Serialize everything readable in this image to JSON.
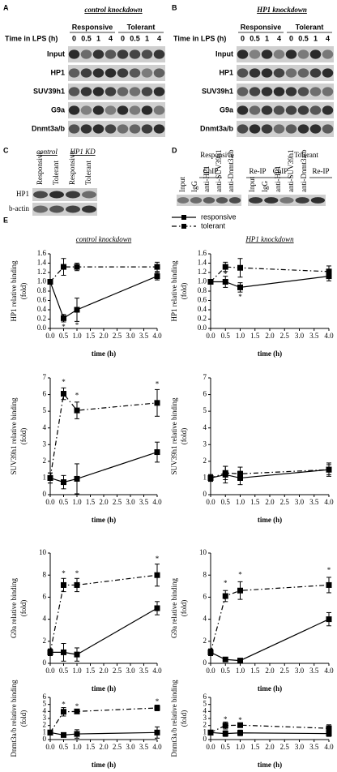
{
  "panels": {
    "A": {
      "label": "A",
      "title": "control knockdown",
      "groups": [
        "Responsive",
        "Tolerant"
      ],
      "time_label": "Time in LPS (h)",
      "times": [
        "0",
        "0.5",
        "1",
        "4",
        "0",
        "0.5",
        "1",
        "4"
      ],
      "rows": [
        "Input",
        "HP1",
        "SUV39h1",
        "G9a",
        "Dnmt3a/b"
      ]
    },
    "B": {
      "label": "B",
      "title": "HP1 knockdown",
      "groups": [
        "Responsive",
        "Tolerant"
      ],
      "time_label": "Time in LPS (h)",
      "times": [
        "0",
        "0.5",
        "1",
        "4",
        "0",
        "0.5",
        "1",
        "4"
      ],
      "rows": [
        "Input",
        "HP1",
        "SUV39h1",
        "G9a",
        "Dnmt3a/b"
      ]
    },
    "C": {
      "label": "C",
      "groups": [
        "control",
        "HP1 KD"
      ],
      "lanes": [
        "Responsive",
        "Tolerant",
        "Responsive",
        "Tolerant"
      ],
      "rows": [
        "HP1",
        "b-actin"
      ]
    },
    "D": {
      "label": "D",
      "groups": [
        "Responsive",
        "Tolerant"
      ],
      "subgroups": [
        "ChIP",
        "Re-IP",
        "ChIP",
        "Re-IP"
      ],
      "lanes": [
        "Input",
        "IgG",
        "anti-HP1",
        "anti-SUV39h1",
        "anti-Dnmt3a/b",
        "Input",
        "IgG",
        "anti-HP1",
        "anti-SUV39h1",
        "anti-Dnmt3a/b"
      ]
    },
    "E": {
      "label": "E"
    }
  },
  "chart_data": [
    {
      "type": "line",
      "title": "control knockdown",
      "ylabel": [
        "HP1 relative binding",
        "(fold)"
      ],
      "xlabel": "time (h)",
      "x": [
        0,
        0.5,
        1,
        4
      ],
      "xlim": [
        0,
        4
      ],
      "xticks": [
        {
          "value": 0,
          "label": "0.0"
        },
        0.5,
        {
          "value": 1,
          "label": "1.0"
        },
        1.5,
        {
          "value": 2,
          "label": "2.0"
        },
        2.5,
        {
          "value": 3,
          "label": "3.0"
        },
        3.5,
        {
          "value": 4,
          "label": "4.0"
        }
      ],
      "ylim": [
        0,
        1.6
      ],
      "yticks": [
        {
          "value": 0,
          "label": "0.0"
        },
        0.2,
        0.4,
        0.6,
        0.8,
        {
          "value": 1,
          "label": "1.0"
        },
        1.2,
        1.4,
        1.6
      ],
      "series": [
        {
          "name": "responsive",
          "color": "#000000",
          "style": "solid",
          "values": [
            1.0,
            0.22,
            0.4,
            1.12
          ],
          "errors": [
            0.02,
            0.08,
            0.25,
            0.08
          ]
        },
        {
          "name": "tolerant",
          "color": "#000000",
          "style": "dashdot",
          "values": [
            1.0,
            1.32,
            1.32,
            1.32
          ],
          "errors": [
            0.02,
            0.18,
            0.08,
            0.1
          ]
        }
      ],
      "annotations": [
        {
          "text": "*",
          "x": 0.5,
          "y": 0.02
        },
        {
          "text": "*",
          "x": 1,
          "y": 0.05
        }
      ]
    },
    {
      "type": "line",
      "title": "HP1 knockdown",
      "ylabel": [
        "HP1 relative binding",
        "(fold)"
      ],
      "xlabel": "time (h)",
      "x": [
        0,
        0.5,
        1,
        4
      ],
      "xlim": [
        0,
        4
      ],
      "xticks": [
        {
          "value": 0,
          "label": "0.0"
        },
        0.5,
        {
          "value": 1,
          "label": "1.0"
        },
        1.5,
        {
          "value": 2,
          "label": "2.0"
        },
        2.5,
        {
          "value": 3,
          "label": "3.0"
        },
        3.5,
        {
          "value": 4,
          "label": "4.0"
        }
      ],
      "ylim": [
        0,
        1.6
      ],
      "yticks": [
        {
          "value": 0,
          "label": "0.0"
        },
        0.2,
        0.4,
        0.6,
        0.8,
        {
          "value": 1,
          "label": "1.0"
        },
        1.2,
        1.4,
        1.6
      ],
      "series": [
        {
          "color": "#000000",
          "style": "solid",
          "values": [
            1.0,
            1.0,
            0.88,
            1.12
          ],
          "errors": [
            0.02,
            0.12,
            0.1,
            0.1
          ]
        },
        {
          "color": "#000000",
          "style": "dashdot",
          "values": [
            1.0,
            1.32,
            1.3,
            1.22
          ],
          "errors": [
            0.02,
            0.1,
            0.2,
            0.12
          ]
        }
      ],
      "annotations": [
        {
          "text": "*",
          "x": 0.5,
          "y": 1.15
        },
        {
          "text": "*",
          "x": 1,
          "y": 0.66
        }
      ]
    },
    {
      "type": "line",
      "ylabel": [
        "SUV39h1 relative binding",
        "(fold)"
      ],
      "xlabel": "time (h)",
      "x": [
        0,
        0.5,
        1,
        4
      ],
      "xlim": [
        0,
        4
      ],
      "xticks": [
        {
          "value": 0,
          "label": "0.0"
        },
        0.5,
        {
          "value": 1,
          "label": "1.0"
        },
        1.5,
        {
          "value": 2,
          "label": "2.0"
        },
        2.5,
        {
          "value": 3,
          "label": "3.0"
        },
        3.5,
        {
          "value": 4,
          "label": "4.0"
        }
      ],
      "ylim": [
        0,
        7
      ],
      "yticks": [
        0,
        1,
        2,
        3,
        4,
        5,
        6,
        7
      ],
      "series": [
        {
          "color": "#000000",
          "style": "solid",
          "values": [
            1.0,
            0.75,
            0.95,
            2.55
          ],
          "errors": [
            0.3,
            0.4,
            0.9,
            0.6
          ]
        },
        {
          "color": "#000000",
          "style": "dashdot",
          "values": [
            1.0,
            6.05,
            5.05,
            5.5
          ],
          "errors": [
            0.3,
            0.35,
            0.5,
            0.8
          ]
        }
      ],
      "annotations": [
        {
          "text": "*",
          "x": 0.5,
          "y": 6.7
        },
        {
          "text": "*",
          "x": 1,
          "y": 5.9
        },
        {
          "text": "*",
          "x": 4,
          "y": 6.6
        }
      ]
    },
    {
      "type": "line",
      "ylabel": [
        "SUV39h1 relative binding",
        "(fold)"
      ],
      "xlabel": "time (h)",
      "x": [
        0,
        0.5,
        1,
        4
      ],
      "xlim": [
        0,
        4
      ],
      "xticks": [
        {
          "value": 0,
          "label": "0.0"
        },
        0.5,
        {
          "value": 1,
          "label": "1.0"
        },
        1.5,
        {
          "value": 2,
          "label": "2.0"
        },
        2.5,
        {
          "value": 3,
          "label": "3.0"
        },
        3.5,
        {
          "value": 4,
          "label": "4.0"
        }
      ],
      "ylim": [
        0,
        7
      ],
      "yticks": [
        0,
        1,
        2,
        3,
        4,
        5,
        6,
        7
      ],
      "series": [
        {
          "color": "#000000",
          "style": "solid",
          "values": [
            1.0,
            1.2,
            1.0,
            1.5
          ],
          "errors": [
            0.2,
            0.5,
            0.4,
            0.4
          ]
        },
        {
          "color": "#000000",
          "style": "dashdot",
          "values": [
            1.0,
            1.3,
            1.25,
            1.5
          ],
          "errors": [
            0.2,
            0.4,
            0.4,
            0.3
          ]
        }
      ],
      "annotations": []
    },
    {
      "type": "line",
      "ylabel": [
        "G9a relative binding",
        "(fold)"
      ],
      "xlabel": "time (h)",
      "x": [
        0,
        0.5,
        1,
        4
      ],
      "xlim": [
        0,
        4
      ],
      "xticks": [
        {
          "value": 0,
          "label": "0.0"
        },
        0.5,
        {
          "value": 1,
          "label": "1.0"
        },
        1.5,
        {
          "value": 2,
          "label": "2.0"
        },
        2.5,
        {
          "value": 3,
          "label": "3.0"
        },
        3.5,
        {
          "value": 4,
          "label": "4.0"
        }
      ],
      "ylim": [
        0,
        10
      ],
      "yticks": [
        0,
        2,
        4,
        6,
        8,
        10
      ],
      "series": [
        {
          "color": "#000000",
          "style": "solid",
          "values": [
            1.0,
            1.0,
            0.8,
            5.0
          ],
          "errors": [
            0.3,
            0.8,
            0.6,
            0.6
          ]
        },
        {
          "color": "#000000",
          "style": "dashdot",
          "values": [
            1.0,
            7.1,
            7.1,
            8.0
          ],
          "errors": [
            0.3,
            0.6,
            0.6,
            1.0
          ]
        }
      ],
      "annotations": [
        {
          "text": "*",
          "x": 0.5,
          "y": 8.1
        },
        {
          "text": "*",
          "x": 1,
          "y": 8.1
        },
        {
          "text": "*",
          "x": 4,
          "y": 9.4
        }
      ]
    },
    {
      "type": "line",
      "ylabel": [
        "G9a relative binding",
        "(fold)"
      ],
      "xlabel": "time (h)",
      "x": [
        0,
        0.5,
        1,
        4
      ],
      "xlim": [
        0,
        4
      ],
      "xticks": [
        {
          "value": 0,
          "label": "0.0"
        },
        0.5,
        {
          "value": 1,
          "label": "1.0"
        },
        1.5,
        {
          "value": 2,
          "label": "2.0"
        },
        2.5,
        {
          "value": 3,
          "label": "3.0"
        },
        3.5,
        {
          "value": 4,
          "label": "4.0"
        }
      ],
      "ylim": [
        0,
        10
      ],
      "yticks": [
        0,
        2,
        4,
        6,
        8,
        10
      ],
      "series": [
        {
          "color": "#000000",
          "style": "solid",
          "values": [
            1.0,
            0.35,
            0.25,
            4.0
          ],
          "errors": [
            0.3,
            0.2,
            0.1,
            0.6
          ]
        },
        {
          "color": "#000000",
          "style": "dashdot",
          "values": [
            1.0,
            6.1,
            6.6,
            7.1
          ],
          "errors": [
            0.3,
            0.5,
            0.8,
            0.7
          ]
        }
      ],
      "annotations": [
        {
          "text": "*",
          "x": 0.5,
          "y": 7.2
        },
        {
          "text": "*",
          "x": 1,
          "y": 8.0
        },
        {
          "text": "*",
          "x": 4,
          "y": 8.4
        }
      ]
    },
    {
      "type": "line",
      "ylabel": [
        "Dnmt3a/b relative binding",
        "(fold)"
      ],
      "xlabel": "time (h)",
      "x": [
        0,
        0.5,
        1,
        4
      ],
      "xlim": [
        0,
        4
      ],
      "xticks": [
        {
          "value": 0,
          "label": "0.0"
        },
        0.5,
        {
          "value": 1,
          "label": "1.0"
        },
        1.5,
        {
          "value": 2,
          "label": "2.0"
        },
        2.5,
        {
          "value": 3,
          "label": "3.0"
        },
        3.5,
        {
          "value": 4,
          "label": "4.0"
        }
      ],
      "ylim": [
        0,
        6
      ],
      "yticks": [
        0,
        1,
        2,
        3,
        4,
        5,
        6
      ],
      "series": [
        {
          "color": "#000000",
          "style": "solid",
          "values": [
            1.0,
            0.65,
            0.8,
            1.0
          ],
          "errors": [
            0.3,
            0.3,
            0.6,
            0.8
          ]
        },
        {
          "color": "#000000",
          "style": "dashdot",
          "values": [
            1.0,
            3.95,
            4.0,
            4.5
          ],
          "errors": [
            0.3,
            0.6,
            0.3,
            0.4
          ]
        }
      ],
      "annotations": [
        {
          "text": "*",
          "x": 0.5,
          "y": 4.9
        },
        {
          "text": "*",
          "x": 1,
          "y": 4.6
        },
        {
          "text": "*",
          "x": 4,
          "y": 5.3
        }
      ]
    },
    {
      "type": "line",
      "ylabel": [
        "Dnmt3a/b relative binding",
        "(fold)"
      ],
      "xlabel": "time (h)",
      "x": [
        0,
        0.5,
        1,
        4
      ],
      "xlim": [
        0,
        4
      ],
      "xticks": [
        {
          "value": 0,
          "label": "0.0"
        },
        0.5,
        {
          "value": 1,
          "label": "1.0"
        },
        1.5,
        {
          "value": 2,
          "label": "2.0"
        },
        2.5,
        {
          "value": 3,
          "label": "3.0"
        },
        3.5,
        {
          "value": 4,
          "label": "4.0"
        }
      ],
      "ylim": [
        0,
        6
      ],
      "yticks": [
        0,
        1,
        2,
        3,
        4,
        5,
        6
      ],
      "series": [
        {
          "color": "#000000",
          "style": "solid",
          "values": [
            1.0,
            0.85,
            0.95,
            0.85
          ],
          "errors": [
            0.1,
            0.4,
            0.4,
            0.4
          ]
        },
        {
          "color": "#000000",
          "style": "dashdot",
          "values": [
            1.0,
            2.0,
            2.05,
            1.6
          ],
          "errors": [
            0.1,
            0.5,
            0.3,
            0.5
          ]
        }
      ],
      "annotations": [
        {
          "text": "*",
          "x": 0.5,
          "y": 2.8
        },
        {
          "text": "*",
          "x": 1,
          "y": 2.65
        }
      ]
    }
  ]
}
